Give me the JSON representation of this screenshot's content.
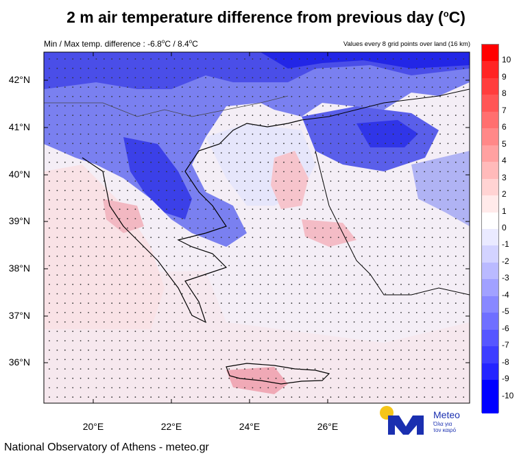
{
  "title": "2 m air temperature difference from previous day (",
  "title_unit": "o",
  "title_tail": "C)",
  "minmax_prefix": "Min / Max temp. difference : -6.8",
  "minmax_mid": "C / 8.4",
  "minmax_tail": "C",
  "minmax_sup": "o",
  "values_note": "Values every 8 grid points over land (16 km)",
  "lat_labels": [
    "42°N",
    "41°N",
    "40°N",
    "39°N",
    "38°N",
    "37°N",
    "36°N"
  ],
  "lon_labels": [
    "20°E",
    "22°E",
    "24°E",
    "26°E"
  ],
  "colorbar": {
    "labels": [
      "10",
      "9",
      "8",
      "7",
      "6",
      "5",
      "4",
      "3",
      "2",
      "1",
      "0",
      "-1",
      "-2",
      "-3",
      "-4",
      "-5",
      "-6",
      "-7",
      "-8",
      "-9",
      "-10"
    ],
    "colors": [
      "#ff0000",
      "#ff2424",
      "#ff3d3d",
      "#ff5656",
      "#ff6f6f",
      "#ff8888",
      "#ffa1a1",
      "#ffbaba",
      "#ffd3d3",
      "#ffeaea",
      "#ffffff",
      "#eaeaff",
      "#d3d3ff",
      "#babaff",
      "#a1a1ff",
      "#8888ff",
      "#6f6fff",
      "#5656ff",
      "#3d3dff",
      "#2424ff",
      "#0000ff",
      "#0000ff"
    ]
  },
  "footer": "National Observatory of Athens - meteo.gr",
  "logo": {
    "brand": "Meteo",
    "tagline_1": "Όλα για",
    "tagline_2": "τον καιρό"
  }
}
